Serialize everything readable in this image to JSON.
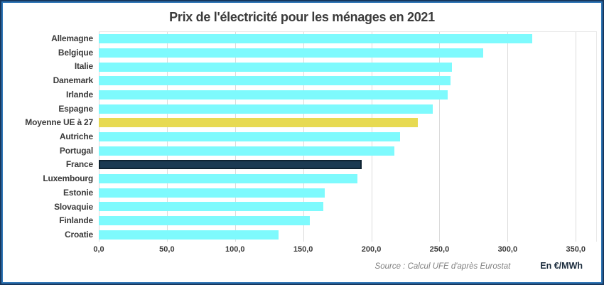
{
  "chart_data": {
    "type": "bar",
    "orientation": "horizontal",
    "title": "Prix de l'électricité pour les ménages en 2021",
    "categories": [
      "Allemagne",
      "Belgique",
      "Italie",
      "Danemark",
      "Irlande",
      "Espagne",
      "Moyenne UE à 27",
      "Autriche",
      "Portugal",
      "France",
      "Luxembourg",
      "Estonie",
      "Slovaquie",
      "Finlande",
      "Croatie"
    ],
    "values": [
      318,
      282,
      259,
      258,
      256,
      245,
      234,
      221,
      217,
      193,
      190,
      166,
      165,
      155,
      132
    ],
    "bar_colors": [
      "cyan",
      "cyan",
      "cyan",
      "cyan",
      "cyan",
      "cyan",
      "yellow",
      "cyan",
      "cyan",
      "navy",
      "cyan",
      "cyan",
      "cyan",
      "cyan",
      "cyan"
    ],
    "colors": {
      "cyan": "#7EFAFD",
      "yellow": "#E7DA52",
      "navy": "#1B3A52",
      "navy_border": "#0F2433",
      "gridline": "#DBDBDB",
      "frame_outer": "#17375E",
      "frame_inner": "#2E75B6"
    },
    "xlabel": "",
    "ylabel": "",
    "xlim": [
      0,
      350
    ],
    "xticks": {
      "labels": [
        "0,0",
        "50,0",
        "100,0",
        "150,0",
        "200,0",
        "250,0",
        "300,0",
        "350,0"
      ],
      "values": [
        0,
        50,
        100,
        150,
        200,
        250,
        300,
        350
      ]
    },
    "grid": "vertical",
    "legend": "none",
    "source": "Source : Calcul UFE d'après Eurostat",
    "unit_label": "En €/MWh"
  }
}
